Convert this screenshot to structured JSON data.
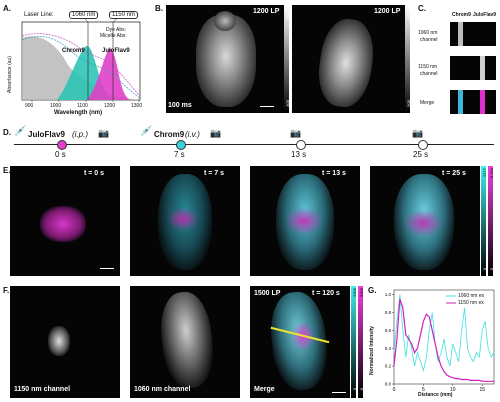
{
  "panels": {
    "A": {
      "label": "A.",
      "laser_line_label": "Laser Line:",
      "laser_1060": "1060 nm",
      "laser_1150": "1150 nm",
      "legend_dye": "Dye Abs:",
      "legend_micelle": "Micelle Abs:",
      "dye1": "Chrom9",
      "dye2": "JuloFlav9",
      "ylabel": "Absorbance (au)",
      "xlabel": "Wavelength (nm)",
      "xticks": [
        "900",
        "1000",
        "1100",
        "1200",
        "1300"
      ]
    },
    "B": {
      "label": "B.",
      "tag1": "1200 LP",
      "tag2": "1200 LP",
      "time": "100 ms",
      "cbar1_top": "6000",
      "cbar1_bot": "300",
      "cbar2_top": "4000",
      "cbar2_bot": "500"
    },
    "C": {
      "label": "C.",
      "col1": "Chrom9",
      "col2": "JuloFlav9",
      "row1a": "1060 nm",
      "row1b": "channel",
      "row2a": "1150 nm",
      "row2b": "channel",
      "row3": "Merge"
    },
    "D": {
      "label": "D.",
      "inj1_name": "JuloFlav9",
      "inj1_route": "(i.p.)",
      "inj2_name": "Chrom9",
      "inj2_route": "(i.v.)",
      "times": [
        "0 s",
        "7 s",
        "13 s",
        "25 s"
      ]
    },
    "E": {
      "label": "E.",
      "t0": "t = 0 s",
      "t1": "t = 7 s",
      "t2": "t = 13 s",
      "t3": "t = 25 s",
      "cbar_a_top": "2177",
      "cbar_a_bot": "0",
      "cbar_b_top": "6.294",
      "cbar_b_bot": "0"
    },
    "F": {
      "label": "F.",
      "ch1150": "1150 nm channel",
      "ch1060": "1060 nm channel",
      "merge": "Merge",
      "lp": "1500 LP",
      "time": "t = 120 s",
      "cbar_a_top": "2300",
      "cbar_a_bot": "0",
      "cbar_b_top": "6000",
      "cbar_b_bot": "0"
    },
    "G": {
      "label": "G.",
      "legend1": "1060 nm ex",
      "legend2": "1150 nm ex",
      "ylabel": "Normalized Intensity",
      "xlabel": "Distance (mm)",
      "xticks": [
        "0",
        "5",
        "10",
        "15"
      ],
      "yticks": [
        "0.0",
        "0.2",
        "0.4",
        "0.6",
        "0.8",
        "1.0"
      ]
    }
  },
  "colors": {
    "chrom9": "#2ec4b6",
    "juloflav9": "#e040c8",
    "cyan_line": "#40e0e0",
    "magenta_line": "#d020c0"
  },
  "chart_data": {
    "type": "line",
    "xlabel": "Distance (mm)",
    "ylabel": "Normalized Intensity",
    "xlim": [
      0,
      17
    ],
    "ylim": [
      0,
      1.05
    ],
    "series": [
      {
        "name": "1060 nm ex",
        "x": [
          0,
          0.5,
          1,
          1.5,
          2,
          2.5,
          3,
          3.5,
          4,
          4.5,
          5,
          5.5,
          6,
          6.5,
          7,
          7.5,
          8,
          8.5,
          9,
          9.5,
          10,
          10.5,
          11,
          11.5,
          12,
          12.5,
          13,
          13.5,
          14,
          14.5,
          15,
          15.5,
          16,
          16.5,
          17
        ],
        "values": [
          0.35,
          0.7,
          1.0,
          0.6,
          0.3,
          0.55,
          0.4,
          0.2,
          0.35,
          0.25,
          0.15,
          0.3,
          0.6,
          0.8,
          0.45,
          0.25,
          0.35,
          0.5,
          0.3,
          0.2,
          0.45,
          0.35,
          0.25,
          0.6,
          0.85,
          0.4,
          0.3,
          0.25,
          0.35,
          0.3,
          0.6,
          0.7,
          0.4,
          0.3,
          0.35
        ]
      },
      {
        "name": "1150 nm ex",
        "x": [
          0,
          0.5,
          1,
          1.5,
          2,
          2.5,
          3,
          3.5,
          4,
          4.5,
          5,
          5.5,
          6,
          6.5,
          7,
          7.5,
          8,
          8.5,
          9,
          9.5,
          10,
          10.5,
          11,
          11.5,
          12,
          12.5,
          13,
          13.5,
          14,
          14.5,
          15,
          15.5,
          16,
          16.5,
          17
        ],
        "values": [
          0.2,
          0.5,
          0.95,
          0.85,
          0.55,
          0.5,
          0.45,
          0.35,
          0.4,
          0.55,
          0.7,
          0.78,
          0.75,
          0.6,
          0.45,
          0.3,
          0.2,
          0.14,
          0.1,
          0.08,
          0.07,
          0.06,
          0.06,
          0.05,
          0.05,
          0.05,
          0.04,
          0.04,
          0.04,
          0.04,
          0.03,
          0.03,
          0.03,
          0.03,
          0.03
        ]
      }
    ]
  }
}
